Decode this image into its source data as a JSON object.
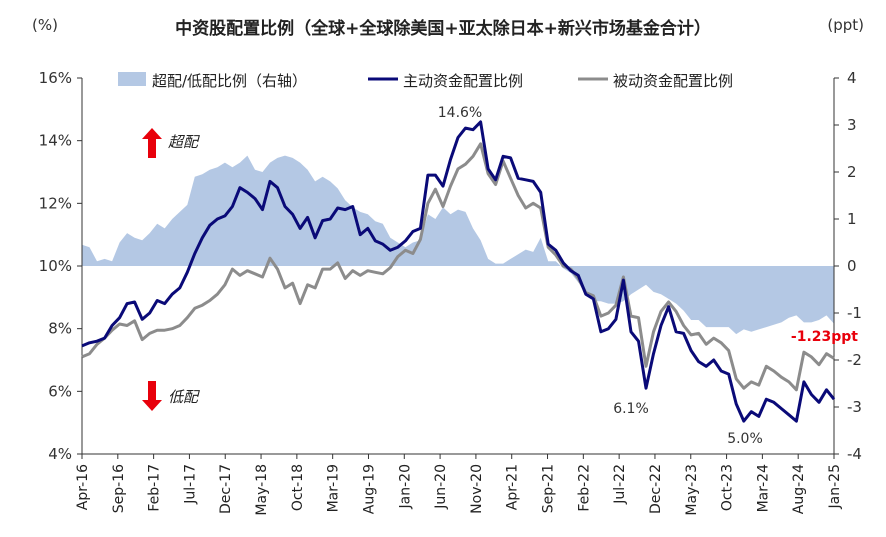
{
  "chart_data": {
    "type": "line",
    "title": "中资股配置比例（全球+全球除美国+亚太除日本+新兴市场基金合计）",
    "left_unit": "(%)",
    "right_unit": "(ppt)",
    "left_axis": {
      "min": 4,
      "max": 16,
      "ticks": [
        "4%",
        "6%",
        "8%",
        "10%",
        "12%",
        "14%",
        "16%"
      ]
    },
    "right_axis": {
      "min": -4,
      "max": 4,
      "ticks": [
        "-4",
        "-3",
        "-2",
        "-1",
        "0",
        "1",
        "2",
        "3",
        "4"
      ]
    },
    "x_tick_labels": [
      "Apr-16",
      "Sep-16",
      "Feb-17",
      "Jul-17",
      "Dec-17",
      "May-18",
      "Oct-18",
      "Mar-19",
      "Aug-19",
      "Jan-20",
      "Jun-20",
      "Nov-20",
      "Apr-21",
      "Sep-21",
      "Feb-22",
      "Jul-22",
      "Dec-22",
      "May-23",
      "Oct-23",
      "Mar-24",
      "Aug-24",
      "Jan-25"
    ],
    "legend": {
      "area": "超配/低配比例（右轴）",
      "active": "主动资金配置比例",
      "passive": "被动资金配置比例"
    },
    "annotations": {
      "peak": "14.6%",
      "low1": "6.1%",
      "low2": "5.0%",
      "latest": "-1.23ppt",
      "over": "超配",
      "under": "低配"
    },
    "colors": {
      "area": "#b4c8e4",
      "active": "#0a0a78",
      "passive": "#8c8c8c",
      "arrow": "#e8000b"
    },
    "series": [
      {
        "name": "主动资金配置比例",
        "axis": "left",
        "values": [
          7.45,
          7.55,
          7.6,
          7.7,
          8.1,
          8.35,
          8.8,
          8.85,
          8.3,
          8.5,
          8.9,
          8.8,
          9.1,
          9.3,
          9.8,
          10.4,
          10.9,
          11.3,
          11.5,
          11.6,
          11.9,
          12.5,
          12.35,
          12.15,
          11.8,
          12.7,
          12.5,
          11.9,
          11.65,
          11.2,
          11.55,
          10.9,
          11.45,
          11.5,
          11.85,
          11.8,
          11.9,
          11.0,
          11.2,
          10.8,
          10.7,
          10.5,
          10.6,
          10.8,
          11.1,
          11.2,
          12.9,
          12.9,
          12.55,
          13.4,
          14.1,
          14.4,
          14.35,
          14.6,
          13.1,
          12.75,
          13.5,
          13.45,
          12.8,
          12.75,
          12.7,
          12.35,
          10.7,
          10.5,
          10.1,
          9.85,
          9.7,
          9.1,
          8.95,
          7.9,
          8.0,
          8.3,
          9.55,
          7.9,
          7.6,
          6.1,
          7.2,
          8.1,
          8.7,
          7.9,
          7.85,
          7.3,
          6.95,
          6.8,
          7.0,
          6.65,
          6.55,
          5.6,
          5.05,
          5.35,
          5.2,
          5.75,
          5.65,
          5.45,
          5.25,
          5.05,
          6.3,
          5.9,
          5.65,
          6.05,
          5.75
        ]
      },
      {
        "name": "被动资金配置比例",
        "axis": "left",
        "values": [
          7.1,
          7.2,
          7.5,
          7.7,
          7.95,
          8.15,
          8.1,
          8.25,
          7.65,
          7.85,
          7.95,
          7.95,
          8.0,
          8.1,
          8.35,
          8.65,
          8.75,
          8.9,
          9.1,
          9.4,
          9.9,
          9.7,
          9.85,
          9.75,
          9.65,
          10.25,
          9.9,
          9.3,
          9.45,
          8.8,
          9.4,
          9.3,
          9.9,
          9.9,
          10.1,
          9.6,
          9.85,
          9.7,
          9.85,
          9.8,
          9.75,
          9.95,
          10.3,
          10.5,
          10.4,
          10.85,
          12.0,
          12.45,
          11.9,
          12.55,
          13.1,
          13.25,
          13.5,
          13.9,
          12.95,
          12.6,
          13.35,
          12.8,
          12.25,
          11.85,
          12.0,
          11.85,
          10.6,
          10.35,
          10.0,
          9.9,
          9.6,
          9.15,
          9.05,
          8.4,
          8.5,
          8.75,
          9.65,
          8.4,
          8.35,
          6.8,
          7.9,
          8.55,
          8.85,
          8.55,
          8.1,
          7.8,
          7.85,
          7.5,
          7.7,
          7.55,
          7.3,
          6.4,
          6.1,
          6.3,
          6.2,
          6.8,
          6.65,
          6.45,
          6.3,
          6.05,
          7.25,
          7.1,
          6.85,
          7.2,
          7.05
        ]
      },
      {
        "name": "超配/低配比例（右轴）",
        "axis": "right",
        "type": "area",
        "values": [
          0.45,
          0.4,
          0.1,
          0.15,
          0.1,
          0.5,
          0.7,
          0.6,
          0.55,
          0.7,
          0.9,
          0.8,
          1.0,
          1.15,
          1.3,
          1.9,
          1.95,
          2.05,
          2.1,
          2.2,
          2.1,
          2.2,
          2.35,
          2.05,
          2.0,
          2.2,
          2.3,
          2.35,
          2.3,
          2.2,
          2.05,
          1.8,
          1.9,
          1.8,
          1.65,
          1.4,
          1.25,
          1.15,
          1.1,
          0.95,
          0.9,
          0.6,
          0.5,
          0.4,
          0.5,
          0.55,
          1.1,
          1.0,
          1.25,
          1.1,
          1.2,
          1.15,
          0.8,
          0.55,
          0.15,
          0.05,
          0.05,
          0.15,
          0.25,
          0.35,
          0.3,
          0.6,
          0.1,
          0.1,
          -0.05,
          -0.15,
          -0.35,
          -0.5,
          -0.75,
          -0.75,
          -0.8,
          -0.8,
          -0.75,
          -0.6,
          -0.5,
          -0.4,
          -0.55,
          -0.6,
          -0.7,
          -0.8,
          -0.95,
          -1.15,
          -1.15,
          -1.3,
          -1.3,
          -1.3,
          -1.3,
          -1.45,
          -1.35,
          -1.4,
          -1.35,
          -1.3,
          -1.25,
          -1.2,
          -1.1,
          -1.05,
          -1.2,
          -1.2,
          -1.15,
          -1.05,
          -1.23
        ]
      }
    ]
  }
}
